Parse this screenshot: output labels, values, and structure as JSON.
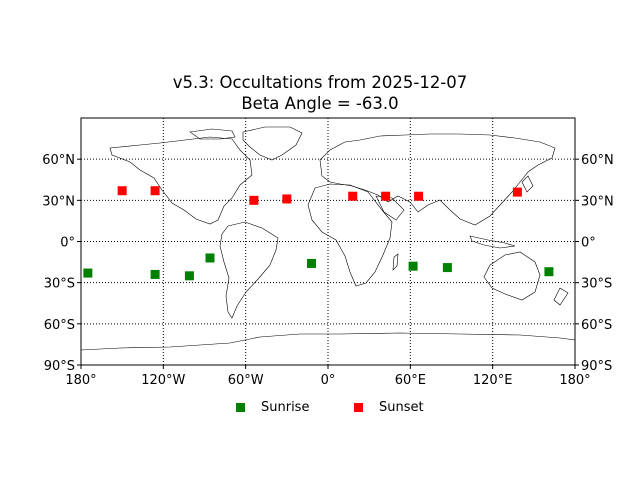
{
  "title": {
    "line1": "v5.3: Occultations from 2025-12-07",
    "line2": "Beta Angle = -63.0"
  },
  "chart_data": {
    "type": "scatter",
    "title": "v5.3: Occultations from 2025-12-07\nBeta Angle = -63.0",
    "projection": "equirectangular",
    "xlim": [
      -180,
      180
    ],
    "ylim": [
      -90,
      90
    ],
    "x_ticks": [
      -180,
      -120,
      -60,
      0,
      60,
      120,
      180
    ],
    "x_tick_labels": [
      "180°",
      "120°W",
      "60°W",
      "0°",
      "60°E",
      "120°E",
      "180°"
    ],
    "y_ticks": [
      -90,
      -60,
      -30,
      0,
      30,
      60
    ],
    "y_tick_labels": [
      "90°S",
      "60°S",
      "30°S",
      "0°",
      "30°N",
      "60°N"
    ],
    "grid": "dotted",
    "legend_position": "bottom-center",
    "series": [
      {
        "name": "Sunrise",
        "color": "#008000",
        "marker": "square",
        "points": [
          {
            "lon": -175,
            "lat": -23
          },
          {
            "lon": -126,
            "lat": -24
          },
          {
            "lon": -101,
            "lat": -25
          },
          {
            "lon": -86,
            "lat": -12
          },
          {
            "lon": -12,
            "lat": -16
          },
          {
            "lon": 62,
            "lat": -18
          },
          {
            "lon": 87,
            "lat": -19
          },
          {
            "lon": 161,
            "lat": -22
          }
        ]
      },
      {
        "name": "Sunset",
        "color": "#ff0000",
        "marker": "square",
        "points": [
          {
            "lon": -150,
            "lat": 37
          },
          {
            "lon": -126,
            "lat": 37
          },
          {
            "lon": -54,
            "lat": 30
          },
          {
            "lon": -30,
            "lat": 31
          },
          {
            "lon": 18,
            "lat": 33
          },
          {
            "lon": 42,
            "lat": 33
          },
          {
            "lon": 66,
            "lat": 33
          },
          {
            "lon": 138,
            "lat": 36
          }
        ]
      }
    ]
  },
  "legend": [
    {
      "label": "Sunrise",
      "color": "#008000"
    },
    {
      "label": "Sunset",
      "color": "#ff0000"
    }
  ]
}
